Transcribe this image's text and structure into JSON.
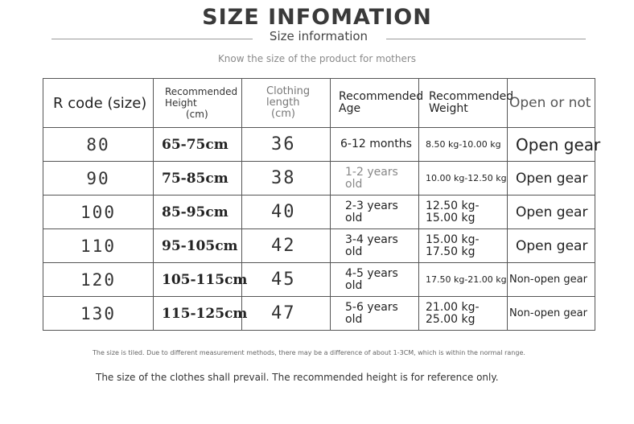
{
  "header": {
    "title": "SIZE INFOMATION",
    "subtitle": "Size information",
    "tagline": "Know the size of the product for mothers"
  },
  "table": {
    "headers": {
      "size": "R code (size)",
      "height_line1": "Recommended",
      "height_line2": "Height",
      "height_unit": "(cm)",
      "length_line1": "Clothing",
      "length_line2": "length",
      "length_unit": "(cm)",
      "age_line1": "Recommended",
      "age_line2": "Age",
      "weight_line1": "Recommended",
      "weight_line2": "Weight",
      "open": "Open or not"
    },
    "rows": [
      {
        "size": "80",
        "height": "65-75cm",
        "length": "36",
        "age": "6-12 months",
        "weight": "8.50 kg-10.00 kg",
        "open": "Open gear"
      },
      {
        "size": "90",
        "height": "75-85cm",
        "length": "38",
        "age": "1-2 years old",
        "weight": "10.00 kg-12.50 kg",
        "open": "Open gear"
      },
      {
        "size": "100",
        "height": "85-95cm",
        "length": "40",
        "age": "2-3 years old",
        "weight": "12.50 kg-15.00 kg",
        "open": "Open gear"
      },
      {
        "size": "110",
        "height": "95-105cm",
        "length": "42",
        "age": "3-4 years old",
        "weight": "15.00 kg-17.50 kg",
        "open": "Open gear"
      },
      {
        "size": "120",
        "height": "105-115cm",
        "length": "45",
        "age": "4-5 years old",
        "weight": "17.50 kg-21.00 kg",
        "open": "Non-open gear"
      },
      {
        "size": "130",
        "height": "115-125cm",
        "length": "47",
        "age": "5-6 years old",
        "weight": "21.00 kg-25.00 kg",
        "open": "Non-open gear"
      }
    ]
  },
  "notes": {
    "note1": "The size is tiled. Due to different measurement methods, there may be a difference of about 1-3CM, which is within the normal range.",
    "note2": "The size of the clothes shall prevail. The recommended height is for reference only."
  }
}
